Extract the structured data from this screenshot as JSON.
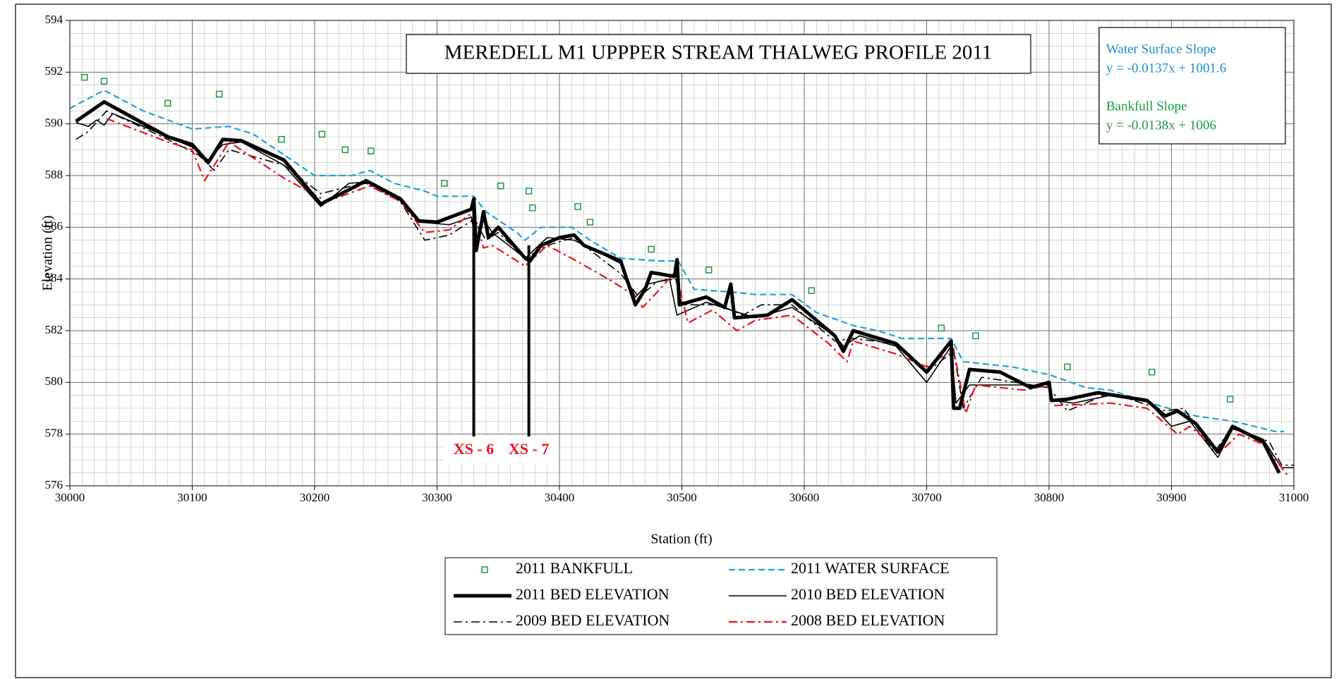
{
  "chart_data": {
    "type": "line",
    "title": "MEREDELL M1 UPPPER STREAM THALWEG PROFILE 2011",
    "x_label": "Station (ft)",
    "y_label": "Elevation (ft)",
    "xlim": [
      30000,
      31000
    ],
    "ylim": [
      576,
      594
    ],
    "xticks": [
      30000,
      30100,
      30200,
      30300,
      30400,
      30500,
      30600,
      30700,
      30800,
      30900,
      31000
    ],
    "yticks": [
      576,
      578,
      580,
      582,
      584,
      586,
      588,
      590,
      592,
      594
    ],
    "grid": true,
    "x_minor_step": 10,
    "y_minor_step": 0.5,
    "legend": "bottom",
    "slope_notes": [
      {
        "title": "Water Surface Slope",
        "equation": "y = -0.0137x + 1001.6",
        "color": "#1f8ad0"
      },
      {
        "title": "Bankfull Slope",
        "equation": "y = -0.0138x + 1006",
        "color": "#1a9a3a"
      }
    ],
    "annotations": [
      {
        "text": "XS - 6",
        "x": 30330,
        "y": 587.1,
        "color": "#e8141c"
      },
      {
        "text": "XS - 7",
        "x": 30375,
        "y": 585.3,
        "color": "#e8141c"
      }
    ],
    "series": [
      {
        "name": "2011 BANKFULL",
        "kind": "scatter",
        "color": "#1a9a3a",
        "x": [
          30012,
          30028,
          30080,
          30122,
          30173,
          30206,
          30225,
          30246,
          30306,
          30352,
          30375,
          30378,
          30415,
          30425,
          30475,
          30522,
          30606,
          30712,
          30740,
          30815,
          30884,
          30948
        ],
        "values": [
          591.8,
          591.65,
          590.8,
          591.15,
          589.4,
          589.6,
          589.0,
          588.95,
          587.7,
          587.6,
          587.4,
          586.75,
          586.8,
          586.2,
          585.15,
          584.35,
          583.55,
          582.1,
          581.8,
          580.6,
          580.4,
          579.35
        ]
      },
      {
        "name": "2011 WATER SURFACE",
        "kind": "line",
        "color": "#1fa0dc",
        "line_style": "dashed",
        "weight": "medium",
        "x": [
          30000,
          30028,
          30060,
          30100,
          30130,
          30150,
          30175,
          30200,
          30230,
          30245,
          30265,
          30290,
          30300,
          30330,
          30340,
          30365,
          30372,
          30385,
          30410,
          30425,
          30450,
          30480,
          30497,
          30510,
          30540,
          30560,
          30590,
          30610,
          30640,
          30660,
          30680,
          30720,
          30730,
          30770,
          30800,
          30830,
          30850,
          30890,
          30920,
          30950,
          30985,
          30992
        ],
        "values": [
          590.6,
          591.3,
          590.5,
          589.8,
          589.9,
          589.6,
          588.8,
          588.0,
          588.0,
          588.2,
          587.7,
          587.4,
          587.2,
          587.2,
          586.6,
          585.8,
          585.5,
          586.0,
          586.0,
          585.5,
          584.8,
          584.7,
          584.7,
          583.6,
          583.5,
          583.4,
          583.4,
          582.7,
          582.2,
          582.0,
          581.7,
          581.7,
          580.8,
          580.6,
          580.3,
          579.8,
          579.7,
          579.1,
          578.7,
          578.5,
          578.1,
          578.1
        ]
      },
      {
        "name": "2011 BED ELEVATION",
        "kind": "line",
        "color": "#000000",
        "line_style": "solid",
        "weight": "thick",
        "x": [
          30005,
          30028,
          30080,
          30100,
          30113,
          30125,
          30140,
          30175,
          30205,
          30230,
          30242,
          30270,
          30285,
          30300,
          30328,
          30330,
          30332,
          30338,
          30342,
          30350,
          30372,
          30376,
          30385,
          30400,
          30412,
          30420,
          30450,
          30462,
          30470,
          30475,
          30494,
          30496,
          30498,
          30520,
          30535,
          30540,
          30543,
          30570,
          30590,
          30625,
          30632,
          30640,
          30675,
          30700,
          30720,
          30722,
          30727,
          30735,
          30760,
          30785,
          30800,
          30802,
          30815,
          30840,
          30880,
          30895,
          30905,
          30920,
          30938,
          30950,
          30975,
          30988
        ],
        "values": [
          590.1,
          590.85,
          589.5,
          589.2,
          588.5,
          589.4,
          589.35,
          588.6,
          586.9,
          587.5,
          587.8,
          587.1,
          586.25,
          586.2,
          586.7,
          587.1,
          585.1,
          586.6,
          585.6,
          586.0,
          584.8,
          584.7,
          585.3,
          585.6,
          585.7,
          585.3,
          584.7,
          583.0,
          583.6,
          584.25,
          584.1,
          584.75,
          583.0,
          583.3,
          582.9,
          583.8,
          582.5,
          582.6,
          583.2,
          581.8,
          581.2,
          582.0,
          581.5,
          580.4,
          581.6,
          579.0,
          579.0,
          580.5,
          580.4,
          579.8,
          580.0,
          579.3,
          579.35,
          579.6,
          579.3,
          578.7,
          578.9,
          578.4,
          577.3,
          578.3,
          577.7,
          576.5
        ]
      },
      {
        "name": "2010 BED ELEVATION",
        "kind": "line",
        "color": "#000000",
        "line_style": "solid",
        "weight": "thin",
        "x": [
          30005,
          30015,
          30022,
          30028,
          30035,
          30080,
          30100,
          30113,
          30125,
          30140,
          30175,
          30205,
          30228,
          30242,
          30270,
          30285,
          30310,
          30328,
          30332,
          30338,
          30345,
          30372,
          30390,
          30412,
          30450,
          30462,
          30472,
          30490,
          30496,
          30520,
          30540,
          30560,
          30590,
          30625,
          30632,
          30645,
          30675,
          30700,
          30720,
          30724,
          30735,
          30780,
          30800,
          30803,
          30820,
          30850,
          30880,
          30900,
          30915,
          30938,
          30950,
          30975,
          30990,
          31000
        ],
        "values": [
          590.05,
          589.9,
          590.15,
          589.95,
          590.4,
          589.5,
          589.1,
          588.6,
          589.2,
          589.3,
          588.4,
          586.8,
          587.7,
          587.75,
          587.1,
          586.2,
          586.1,
          586.4,
          585.3,
          586.3,
          585.8,
          584.8,
          585.6,
          585.5,
          584.6,
          583.3,
          583.8,
          584.0,
          582.6,
          583.1,
          582.8,
          582.5,
          582.9,
          581.8,
          581.4,
          581.8,
          581.4,
          580.0,
          581.4,
          579.2,
          579.9,
          579.9,
          579.8,
          579.3,
          579.2,
          579.5,
          579.3,
          578.3,
          578.5,
          577.1,
          578.2,
          577.8,
          576.7,
          576.7
        ]
      },
      {
        "name": "2009 BED ELEVATION",
        "kind": "line",
        "color": "#000000",
        "line_style": "dashdot",
        "weight": "thin",
        "x": [
          30005,
          30015,
          30030,
          30080,
          30105,
          30118,
          30130,
          30175,
          30205,
          30230,
          30242,
          30270,
          30290,
          30310,
          30330,
          30340,
          30350,
          30372,
          30390,
          30412,
          30450,
          30465,
          30480,
          30495,
          30500,
          30530,
          30550,
          30565,
          30590,
          30625,
          30640,
          30675,
          30700,
          30722,
          30730,
          30745,
          30800,
          30815,
          30850,
          30895,
          30910,
          30935,
          30950,
          30980,
          30990,
          31000
        ],
        "values": [
          589.4,
          589.7,
          590.5,
          589.4,
          588.8,
          588.2,
          589.0,
          588.4,
          587.3,
          587.6,
          587.7,
          587.0,
          585.5,
          585.7,
          586.3,
          585.5,
          585.8,
          584.8,
          585.3,
          585.6,
          584.2,
          583.3,
          583.9,
          584.0,
          583.0,
          583.0,
          582.6,
          583.0,
          583.0,
          581.6,
          581.7,
          581.5,
          580.4,
          581.2,
          579.0,
          580.2,
          579.8,
          578.9,
          579.6,
          578.9,
          579.0,
          577.3,
          578.3,
          577.7,
          576.8,
          576.8
        ]
      },
      {
        "name": "2008 BED ELEVATION",
        "kind": "line",
        "color": "#e8141c",
        "line_style": "dashdot",
        "weight": "medium",
        "x": [
          30030,
          30080,
          30100,
          30110,
          30130,
          30175,
          30210,
          30245,
          30270,
          30290,
          30310,
          30330,
          30338,
          30345,
          30372,
          30390,
          30410,
          30440,
          30460,
          30468,
          30480,
          30495,
          30505,
          30525,
          30545,
          30560,
          30590,
          30620,
          30635,
          30640,
          30675,
          30700,
          30722,
          30732,
          30740,
          30780,
          30800,
          30805,
          30850,
          30880,
          30905,
          30915,
          30940,
          30955,
          30975,
          30995
        ],
        "values": [
          590.2,
          589.3,
          589.0,
          587.8,
          589.3,
          587.9,
          587.0,
          587.6,
          587.0,
          585.8,
          585.9,
          586.6,
          585.2,
          585.3,
          584.5,
          585.3,
          584.8,
          584.0,
          583.4,
          582.9,
          583.5,
          584.3,
          582.3,
          582.8,
          582.0,
          582.4,
          582.6,
          581.5,
          580.8,
          581.6,
          581.1,
          580.6,
          581.3,
          578.8,
          579.9,
          579.7,
          579.9,
          579.1,
          579.2,
          579.0,
          578.0,
          578.3,
          577.3,
          578.0,
          577.6,
          576.4
        ]
      }
    ]
  }
}
